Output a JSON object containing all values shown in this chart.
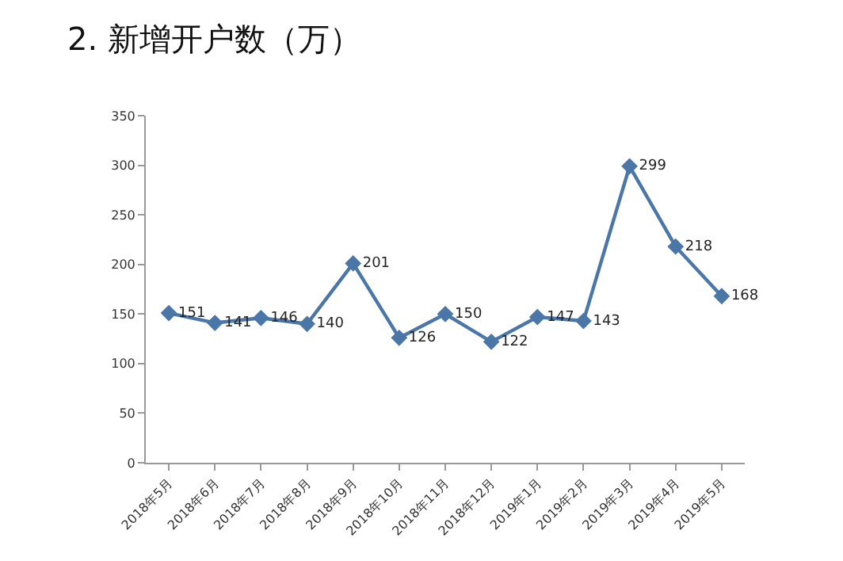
{
  "chart_data": {
    "type": "line",
    "title": "2. 新增开户数（万）",
    "categories": [
      "2018年5月",
      "2018年6月",
      "2018年7月",
      "2018年8月",
      "2018年9月",
      "2018年10月",
      "2018年11月",
      "2018年12月",
      "2019年1月",
      "2019年2月",
      "2019年3月",
      "2019年4月",
      "2019年5月"
    ],
    "series": [
      {
        "color": "#4a76a8",
        "values": [
          151,
          141,
          146,
          140,
          201,
          126,
          150,
          122,
          147,
          143,
          299,
          218,
          168
        ]
      }
    ],
    "ylim": [
      0,
      350
    ],
    "yticks": [
      0,
      50,
      100,
      150,
      200,
      250,
      300,
      350
    ],
    "marker": "diamond",
    "line_style": "solid",
    "data_labels": true
  }
}
